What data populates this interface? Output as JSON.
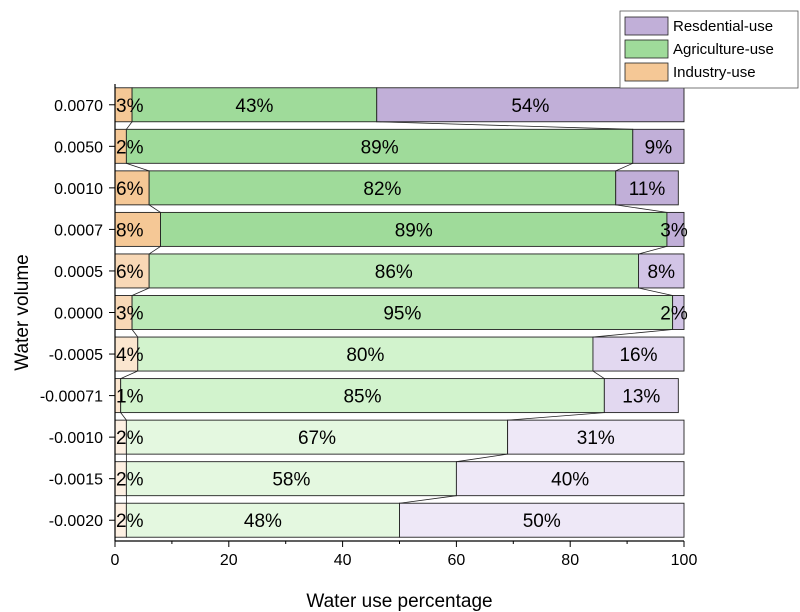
{
  "chart_data": {
    "type": "bar",
    "orientation": "horizontal",
    "stacked": "percent",
    "xlabel": "Water use percentage",
    "ylabel": "Water volume",
    "xlim": [
      0,
      100
    ],
    "xticks": [
      "0",
      "20",
      "40",
      "60",
      "80",
      "100"
    ],
    "categories": [
      "0.0070",
      "0.0050",
      "0.0010",
      "0.0007",
      "0.0005",
      "0.0000",
      "-0.0005",
      "-0.00071",
      "-0.0010",
      "-0.0015",
      "-0.0020"
    ],
    "series": [
      {
        "name": "Industry-use",
        "values": [
          3,
          2,
          6,
          8,
          6,
          3,
          4,
          1,
          2,
          2,
          2
        ],
        "labels": [
          "3%",
          "2%",
          "6%",
          "8%",
          "6%",
          "3%",
          "4%",
          "1%",
          "2%",
          "2%",
          "2%"
        ]
      },
      {
        "name": "Agriculture-use",
        "values": [
          43,
          89,
          82,
          89,
          86,
          95,
          80,
          85,
          67,
          58,
          48
        ],
        "labels": [
          "43%",
          "89%",
          "82%",
          "89%",
          "86%",
          "95%",
          "80%",
          "85%",
          "67%",
          "58%",
          "48%"
        ]
      },
      {
        "name": "Resdential-use",
        "values": [
          54,
          9,
          11,
          3,
          8,
          2,
          16,
          13,
          31,
          40,
          50
        ],
        "labels": [
          "54%",
          "9%",
          "11%",
          "3%",
          "8%",
          "2%",
          "16%",
          "13%",
          "31%",
          "40%",
          "50%"
        ]
      }
    ],
    "legend": {
      "position": "top-right",
      "order": [
        "Resdential-use",
        "Agriculture-use",
        "Industry-use"
      ]
    },
    "colors": {
      "Industry-use": [
        "#f5c896",
        "#f8d8b6",
        "#fbe6cf",
        "#fdf0e2"
      ],
      "Agriculture-use": [
        "#9fdb9a",
        "#bce9b7",
        "#d2f3cd",
        "#e4f8e0"
      ],
      "Resdential-use": [
        "#c1afd8",
        "#d2c4e6",
        "#e2d8f0",
        "#eee8f7"
      ]
    },
    "grid": false
  }
}
